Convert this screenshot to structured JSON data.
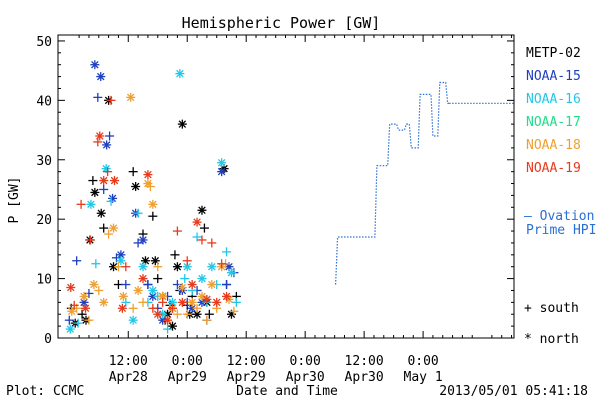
{
  "footer": {
    "left": "Plot: CCMC",
    "center": "Date and Time",
    "right": "2013/05/01 05:41:18"
  },
  "legend_symbols": {
    "south": "+ south",
    "north": "* north"
  },
  "forecast_label": [
    "– Ovation",
    "Prime HPI"
  ],
  "colors": {
    "METP-02": "#000000",
    "NOAA-15": "#1f3fbf",
    "NOAA-16": "#22c7e8",
    "NOAA-17": "#22dd88",
    "NOAA-18": "#f0a030",
    "NOAA-19": "#e83a1c",
    "ovation": "#2a6fd6"
  },
  "chart_data": {
    "type": "scatter",
    "title": "Hemispheric Power [GW]",
    "xlabel": "Date and Time",
    "ylabel": "P [GW]",
    "ylim": [
      0,
      51
    ],
    "xlim": [
      -2.3,
      90.5
    ],
    "x_unit": "hours from Apr28 00:00 UT",
    "yticks": [
      0,
      10,
      20,
      30,
      40,
      50
    ],
    "xticks": [
      {
        "x": 12,
        "label": "12:00",
        "sublabel": "Apr28"
      },
      {
        "x": 24,
        "label": "0:00",
        "sublabel": "Apr29"
      },
      {
        "x": 36,
        "label": "12:00",
        "sublabel": "Apr29"
      },
      {
        "x": 48,
        "label": "0:00",
        "sublabel": "Apr30"
      },
      {
        "x": 60,
        "label": "12:00",
        "sublabel": "Apr30"
      },
      {
        "x": 72,
        "label": "0:00",
        "sublabel": "May 1"
      }
    ],
    "legend": [
      "METP-02",
      "NOAA-15",
      "NOAA-16",
      "NOAA-17",
      "NOAA-18",
      "NOAA-19"
    ],
    "legend_placement": "right",
    "series": [
      {
        "name": "METP-02",
        "points": [
          [
            0.4,
            5,
            "s"
          ],
          [
            1.2,
            2.5,
            "n"
          ],
          [
            2.6,
            4,
            "s"
          ],
          [
            3.4,
            3,
            "n"
          ],
          [
            4.2,
            16.5,
            "n"
          ],
          [
            4.8,
            26.5,
            "s"
          ],
          [
            5.2,
            24.5,
            "n"
          ],
          [
            6.5,
            21,
            "n"
          ],
          [
            7,
            18.5,
            "s"
          ],
          [
            8,
            40,
            "n"
          ],
          [
            9,
            12,
            "n"
          ],
          [
            10,
            9,
            "s"
          ],
          [
            13,
            28,
            "s"
          ],
          [
            13.5,
            25.5,
            "n"
          ],
          [
            15,
            17.5,
            "s"
          ],
          [
            15.5,
            13,
            "n"
          ],
          [
            16,
            9,
            "s"
          ],
          [
            17,
            20.5,
            "s"
          ],
          [
            17.5,
            13,
            "n"
          ],
          [
            18,
            10,
            "s"
          ],
          [
            19,
            7,
            "n"
          ],
          [
            19.5,
            3,
            "s"
          ],
          [
            20,
            4,
            "n"
          ],
          [
            20.5,
            5.5,
            "s"
          ],
          [
            21,
            2,
            "n"
          ],
          [
            21.5,
            14,
            "s"
          ],
          [
            22,
            12,
            "n"
          ],
          [
            22.5,
            8,
            "s"
          ],
          [
            23,
            36,
            "n"
          ],
          [
            24,
            5.5,
            "s"
          ],
          [
            24.5,
            4,
            "n"
          ],
          [
            25,
            7,
            "s"
          ],
          [
            26,
            4,
            "n"
          ],
          [
            27,
            21.5,
            "n"
          ],
          [
            27.5,
            18.5,
            "s"
          ],
          [
            28,
            6,
            "n"
          ],
          [
            28.5,
            4,
            "s"
          ],
          [
            31.5,
            28.5,
            "n"
          ],
          [
            32,
            9,
            "s"
          ],
          [
            33,
            4,
            "n"
          ],
          [
            34,
            7,
            "s"
          ]
        ]
      },
      {
        "name": "NOAA-15",
        "points": [
          [
            0,
            3,
            "s"
          ],
          [
            1.5,
            13,
            "s"
          ],
          [
            3,
            6,
            "n"
          ],
          [
            4,
            7.5,
            "s"
          ],
          [
            5.2,
            46,
            "n"
          ],
          [
            5.8,
            40.5,
            "s"
          ],
          [
            6.4,
            44,
            "n"
          ],
          [
            7,
            25,
            "s"
          ],
          [
            7.6,
            32.5,
            "n"
          ],
          [
            8.2,
            34,
            "s"
          ],
          [
            8.8,
            23.5,
            "n"
          ],
          [
            9.6,
            13.5,
            "s"
          ],
          [
            10.5,
            14,
            "n"
          ],
          [
            11.5,
            9,
            "s"
          ],
          [
            13.5,
            21,
            "n"
          ],
          [
            14,
            16,
            "s"
          ],
          [
            15,
            16.5,
            "n"
          ],
          [
            16,
            9,
            "s"
          ],
          [
            17,
            7,
            "n"
          ],
          [
            18,
            5,
            "s"
          ],
          [
            19,
            3,
            "n"
          ],
          [
            20,
            7,
            "s"
          ],
          [
            21,
            5,
            "n"
          ],
          [
            22,
            9,
            "s"
          ],
          [
            23,
            8,
            "n"
          ],
          [
            24,
            6,
            "s"
          ],
          [
            25,
            5,
            "n"
          ],
          [
            26,
            8,
            "s"
          ],
          [
            27,
            6,
            "n"
          ],
          [
            28,
            3,
            "s"
          ],
          [
            31,
            28,
            "n"
          ],
          [
            32,
            9,
            "s"
          ],
          [
            32.5,
            12,
            "n"
          ],
          [
            33.5,
            11,
            "s"
          ]
        ]
      },
      {
        "name": "NOAA-16",
        "points": [
          [
            0.2,
            1.5,
            "n"
          ],
          [
            1.8,
            2.5,
            "s"
          ],
          [
            4.4,
            22.5,
            "n"
          ],
          [
            5.4,
            12.5,
            "s"
          ],
          [
            7.5,
            28.5,
            "n"
          ],
          [
            8.5,
            23,
            "s"
          ],
          [
            10.5,
            13,
            "n"
          ],
          [
            11.5,
            6,
            "s"
          ],
          [
            13,
            3,
            "n"
          ],
          [
            14,
            21,
            "s"
          ],
          [
            15,
            12,
            "n"
          ],
          [
            16,
            6,
            "s"
          ],
          [
            17,
            8,
            "n"
          ],
          [
            18,
            7,
            "s"
          ],
          [
            19,
            4,
            "n"
          ],
          [
            20,
            1.5,
            "s"
          ],
          [
            21,
            6,
            "n"
          ],
          [
            22.5,
            44.5,
            "n"
          ],
          [
            23.5,
            10,
            "s"
          ],
          [
            24,
            12,
            "n"
          ],
          [
            25,
            8,
            "s"
          ],
          [
            26,
            17,
            "s"
          ],
          [
            27,
            10,
            "n"
          ],
          [
            28,
            6,
            "s"
          ],
          [
            29,
            12,
            "n"
          ],
          [
            30,
            9,
            "s"
          ],
          [
            31,
            29.5,
            "n"
          ],
          [
            32,
            14.5,
            "s"
          ],
          [
            33,
            11,
            "n"
          ],
          [
            34,
            6,
            "s"
          ]
        ]
      },
      {
        "name": "NOAA-17",
        "points": []
      },
      {
        "name": "NOAA-18",
        "points": [
          [
            0.5,
            4.5,
            "n"
          ],
          [
            1.5,
            5,
            "s"
          ],
          [
            3,
            7,
            "n"
          ],
          [
            4,
            3,
            "s"
          ],
          [
            5,
            9,
            "n"
          ],
          [
            6,
            8,
            "s"
          ],
          [
            7,
            6,
            "n"
          ],
          [
            8,
            17.5,
            "s"
          ],
          [
            9,
            18.5,
            "n"
          ],
          [
            10,
            12,
            "s"
          ],
          [
            11,
            7,
            "n"
          ],
          [
            12.5,
            40.5,
            "n"
          ],
          [
            13,
            5,
            "s"
          ],
          [
            14,
            8,
            "n"
          ],
          [
            15,
            6,
            "s"
          ],
          [
            16,
            26,
            "n"
          ],
          [
            16.5,
            25.5,
            "s"
          ],
          [
            17,
            22.5,
            "n"
          ],
          [
            18,
            12,
            "s"
          ],
          [
            19,
            7,
            "n"
          ],
          [
            20,
            3,
            "s"
          ],
          [
            21,
            5,
            "n"
          ],
          [
            22,
            4,
            "s"
          ],
          [
            23,
            8.5,
            "n"
          ],
          [
            24,
            4,
            "s"
          ],
          [
            25,
            6,
            "n"
          ],
          [
            26,
            5,
            "s"
          ],
          [
            27,
            7,
            "n"
          ],
          [
            28,
            3,
            "s"
          ],
          [
            29,
            9,
            "n"
          ],
          [
            30,
            5,
            "s"
          ],
          [
            31,
            12,
            "n"
          ],
          [
            31.8,
            12.5,
            "s"
          ],
          [
            32.5,
            6.5,
            "n"
          ],
          [
            33.5,
            4.5,
            "s"
          ]
        ]
      },
      {
        "name": "NOAA-19",
        "points": [
          [
            0.3,
            8.5,
            "n"
          ],
          [
            1,
            5.5,
            "s"
          ],
          [
            2.4,
            22.5,
            "s"
          ],
          [
            3.3,
            5,
            "n"
          ],
          [
            4.3,
            16.5,
            "s"
          ],
          [
            5.8,
            33,
            "s"
          ],
          [
            6.2,
            34,
            "n"
          ],
          [
            7,
            26.5,
            "n"
          ],
          [
            7.8,
            28,
            "s"
          ],
          [
            8.5,
            40,
            "s"
          ],
          [
            9.2,
            26.5,
            "n"
          ],
          [
            10.8,
            5,
            "n"
          ],
          [
            11.5,
            12,
            "s"
          ],
          [
            15,
            10,
            "n"
          ],
          [
            16,
            27.5,
            "n"
          ],
          [
            17,
            5,
            "s"
          ],
          [
            18,
            4,
            "n"
          ],
          [
            19,
            6,
            "s"
          ],
          [
            20,
            3,
            "n"
          ],
          [
            21,
            5,
            "s"
          ],
          [
            22,
            18,
            "s"
          ],
          [
            23,
            6,
            "n"
          ],
          [
            24,
            13,
            "s"
          ],
          [
            25,
            9,
            "n"
          ],
          [
            26,
            19.5,
            "n"
          ],
          [
            27,
            16.5,
            "s"
          ],
          [
            28,
            6.5,
            "n"
          ],
          [
            29,
            16,
            "s"
          ],
          [
            30,
            6,
            "n"
          ],
          [
            31,
            12.5,
            "s"
          ],
          [
            32,
            7,
            "n"
          ]
        ]
      }
    ],
    "ovation_prime_hpi": [
      [
        54.2,
        9
      ],
      [
        54.6,
        17
      ],
      [
        62.2,
        17
      ],
      [
        62.6,
        29
      ],
      [
        64.8,
        29
      ],
      [
        65.2,
        36
      ],
      [
        66.6,
        36
      ],
      [
        67,
        35
      ],
      [
        68.2,
        35
      ],
      [
        68.6,
        36
      ],
      [
        69.2,
        36
      ],
      [
        69.6,
        32
      ],
      [
        71,
        32
      ],
      [
        71.4,
        41
      ],
      [
        73.6,
        41
      ],
      [
        74,
        34
      ],
      [
        75,
        34
      ],
      [
        75.4,
        43
      ],
      [
        76.6,
        43
      ],
      [
        77,
        39.5
      ],
      [
        77.3,
        39.5
      ]
    ]
  }
}
